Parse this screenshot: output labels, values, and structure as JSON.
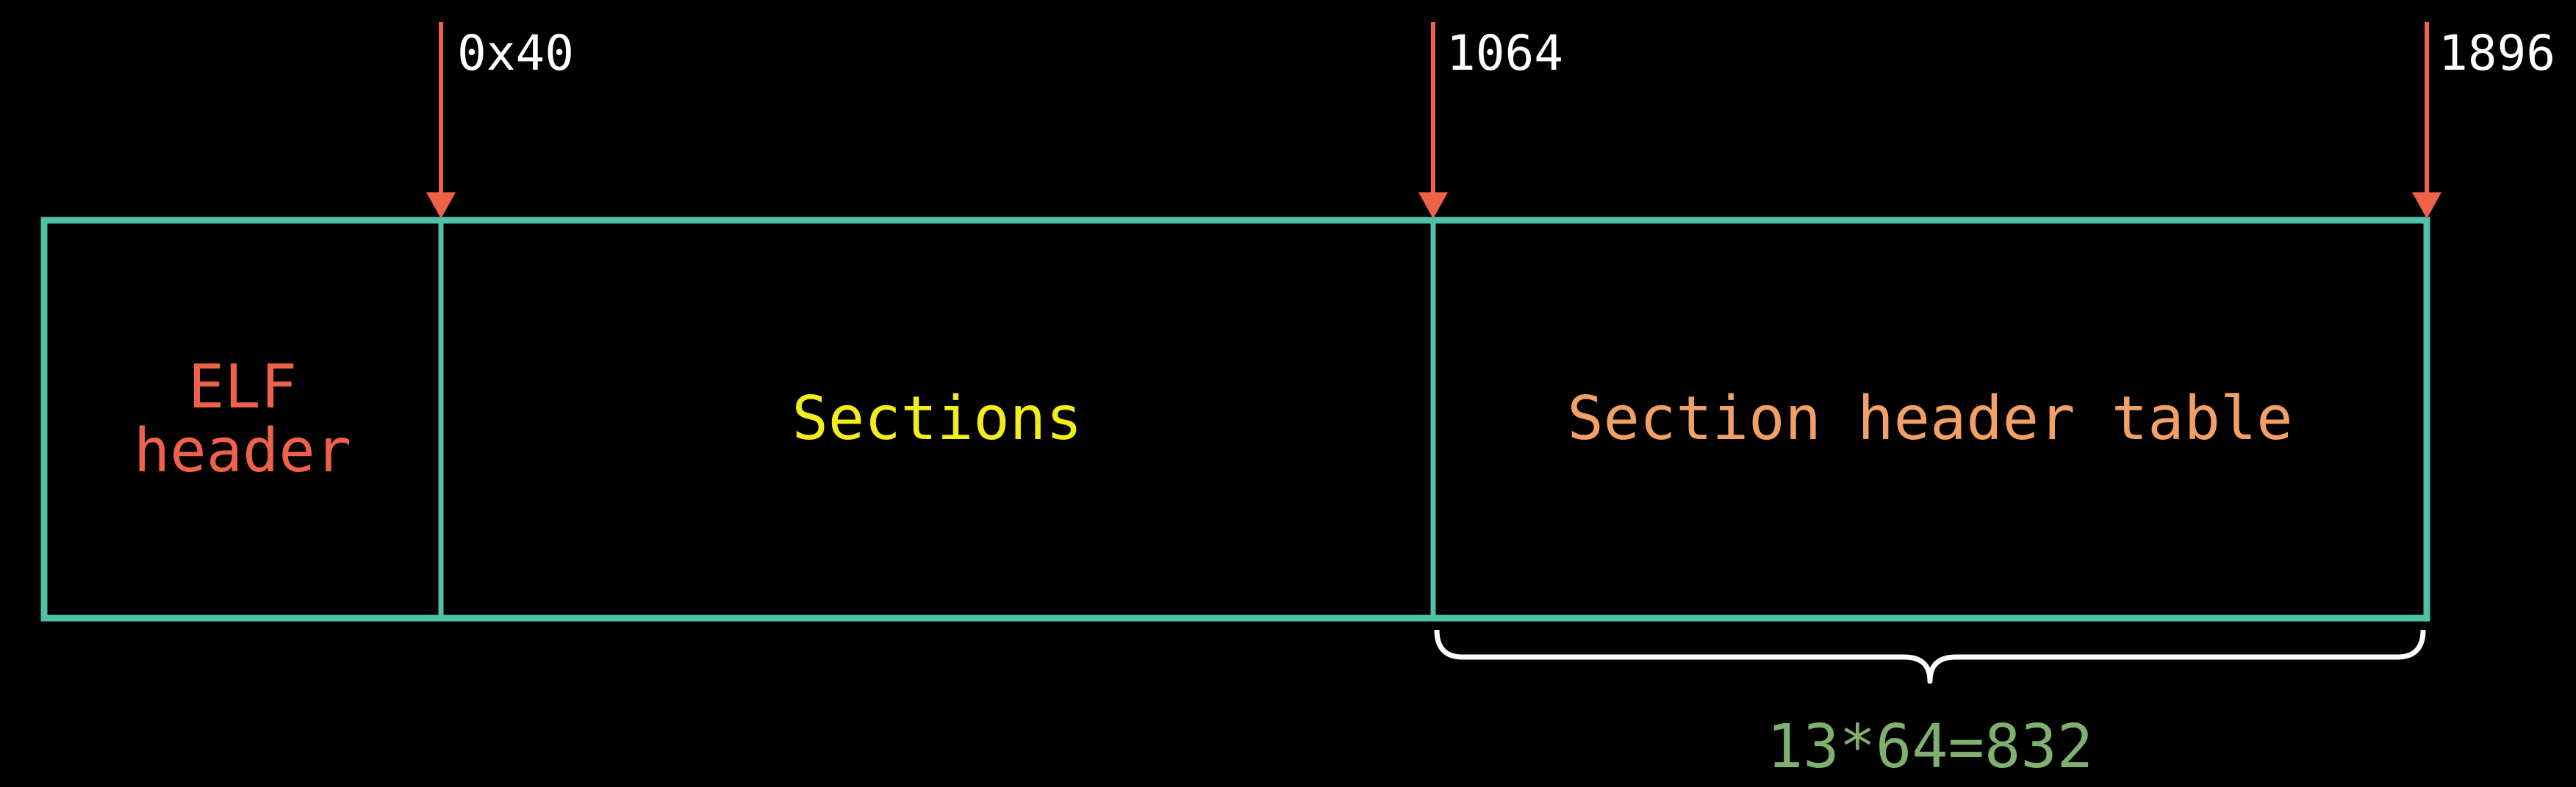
{
  "colors": {
    "background": "#000000",
    "box_stroke": "#4fc1a6",
    "arrow": "#f0614a",
    "elf_header": "#f0614a",
    "sections": "#f2ee1b",
    "section_header_table": "#f2a066",
    "size_label": "#7fb070",
    "brace": "#ffffff",
    "offset_text": "#ffffff"
  },
  "segments": {
    "elf_header_line1": "ELF",
    "elf_header_line2": "header",
    "sections": "Sections",
    "section_header_table": "Section header table"
  },
  "offsets": [
    "0x40",
    "1064",
    "1896"
  ],
  "size_annotation": "13*64=832",
  "icons": {
    "offset_marker": "down-arrow-icon",
    "span_marker": "curly-brace-icon"
  }
}
